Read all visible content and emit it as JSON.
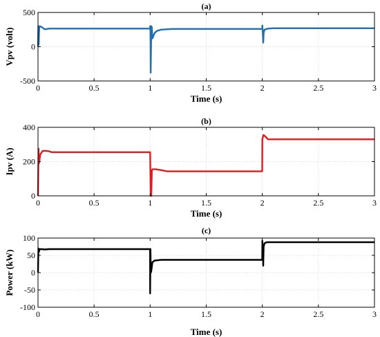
{
  "chart_data": [
    {
      "type": "line",
      "title": "(a)",
      "xlabel": "Time (s)",
      "ylabel": "Vpv (volt)",
      "xlim": [
        0,
        3
      ],
      "ylim": [
        -500,
        500
      ],
      "xticks": [
        0,
        0.5,
        1,
        1.5,
        2,
        2.5,
        3
      ],
      "xtick_labels": [
        "0",
        "0.5",
        "1",
        "1.5",
        "2",
        "2.5",
        "3"
      ],
      "yticks": [
        -500,
        0,
        500
      ],
      "ytick_labels": [
        "-500",
        "0",
        "500"
      ],
      "grid": true,
      "series": [
        {
          "color": "#1f6fb4",
          "x": [
            0,
            0.003,
            0.006,
            0.012,
            0.03,
            0.06,
            0.1,
            0.2,
            0.5,
            0.8,
            0.999,
            1.0,
            1.002,
            1.005,
            1.01,
            1.015,
            1.02,
            1.04,
            1.06,
            1.1,
            1.2,
            1.5,
            1.8,
            1.999,
            2.0,
            2.003,
            2.008,
            2.012,
            2.02,
            2.05,
            2.1,
            2.5,
            3.0
          ],
          "y": [
            0,
            300,
            30,
            300,
            290,
            255,
            265,
            265,
            265,
            265,
            265,
            300,
            300,
            -380,
            300,
            280,
            120,
            200,
            230,
            250,
            260,
            260,
            260,
            260,
            310,
            230,
            60,
            200,
            250,
            265,
            270,
            270,
            270
          ]
        }
      ]
    },
    {
      "type": "line",
      "title": "(b)",
      "xlabel": "Time (s)",
      "ylabel": "Ipv (A)",
      "xlim": [
        0,
        3
      ],
      "ylim": [
        0,
        400
      ],
      "xticks": [
        0,
        0.5,
        1,
        1.5,
        2,
        2.5,
        3
      ],
      "xtick_labels": [
        "0",
        "0.5",
        "1",
        "1.5",
        "2",
        "2.5",
        "3"
      ],
      "yticks": [
        0,
        200,
        400
      ],
      "ytick_labels": [
        "0",
        "200",
        "400"
      ],
      "grid": true,
      "series": [
        {
          "color": "#e3191b",
          "x": [
            0,
            0.005,
            0.01,
            0.02,
            0.04,
            0.06,
            0.1,
            0.12,
            0.2,
            0.5,
            0.8,
            0.999,
            1.0,
            1.005,
            1.01,
            1.015,
            1.02,
            1.05,
            1.1,
            1.15,
            1.2,
            1.5,
            1.8,
            1.999,
            2.0,
            2.01,
            2.03,
            2.05,
            2.1,
            2.5,
            3.0
          ],
          "y": [
            0,
            275,
            190,
            240,
            262,
            263,
            260,
            255,
            255,
            255,
            255,
            255,
            255,
            0,
            0,
            150,
            155,
            155,
            150,
            143,
            143,
            143,
            143,
            143,
            330,
            355,
            345,
            330,
            330,
            330,
            330
          ]
        }
      ]
    },
    {
      "type": "line",
      "title": "(c)",
      "xlabel": "Time (s)",
      "ylabel": "Power (kW)",
      "xlim": [
        0,
        3
      ],
      "ylim": [
        -100,
        100
      ],
      "xticks": [
        0,
        0.5,
        1,
        1.5,
        2,
        2.5,
        3
      ],
      "xtick_labels": [
        "0",
        "0.5",
        "1",
        "1.5",
        "2",
        "2.5",
        "3"
      ],
      "yticks": [
        -100,
        -50,
        0,
        50,
        100
      ],
      "ytick_labels": [
        "-100",
        "-50",
        "0",
        "50",
        "100"
      ],
      "grid": true,
      "series": [
        {
          "color": "#000000",
          "x": [
            0,
            0.004,
            0.008,
            0.015,
            0.03,
            0.06,
            0.1,
            0.2,
            0.5,
            0.8,
            0.999,
            1.0,
            1.003,
            1.006,
            1.01,
            1.02,
            1.04,
            1.07,
            1.1,
            1.2,
            1.5,
            1.8,
            1.999,
            2.0,
            2.004,
            2.008,
            2.012,
            2.02,
            2.04,
            2.1,
            2.5,
            3.0
          ],
          "y": [
            0,
            70,
            60,
            68,
            68,
            67,
            68,
            68,
            68,
            68,
            68,
            -60,
            68,
            0,
            5,
            30,
            35,
            36,
            37,
            37,
            37,
            37,
            37,
            92,
            70,
            20,
            75,
            85,
            88,
            88,
            88,
            88
          ]
        }
      ]
    }
  ]
}
